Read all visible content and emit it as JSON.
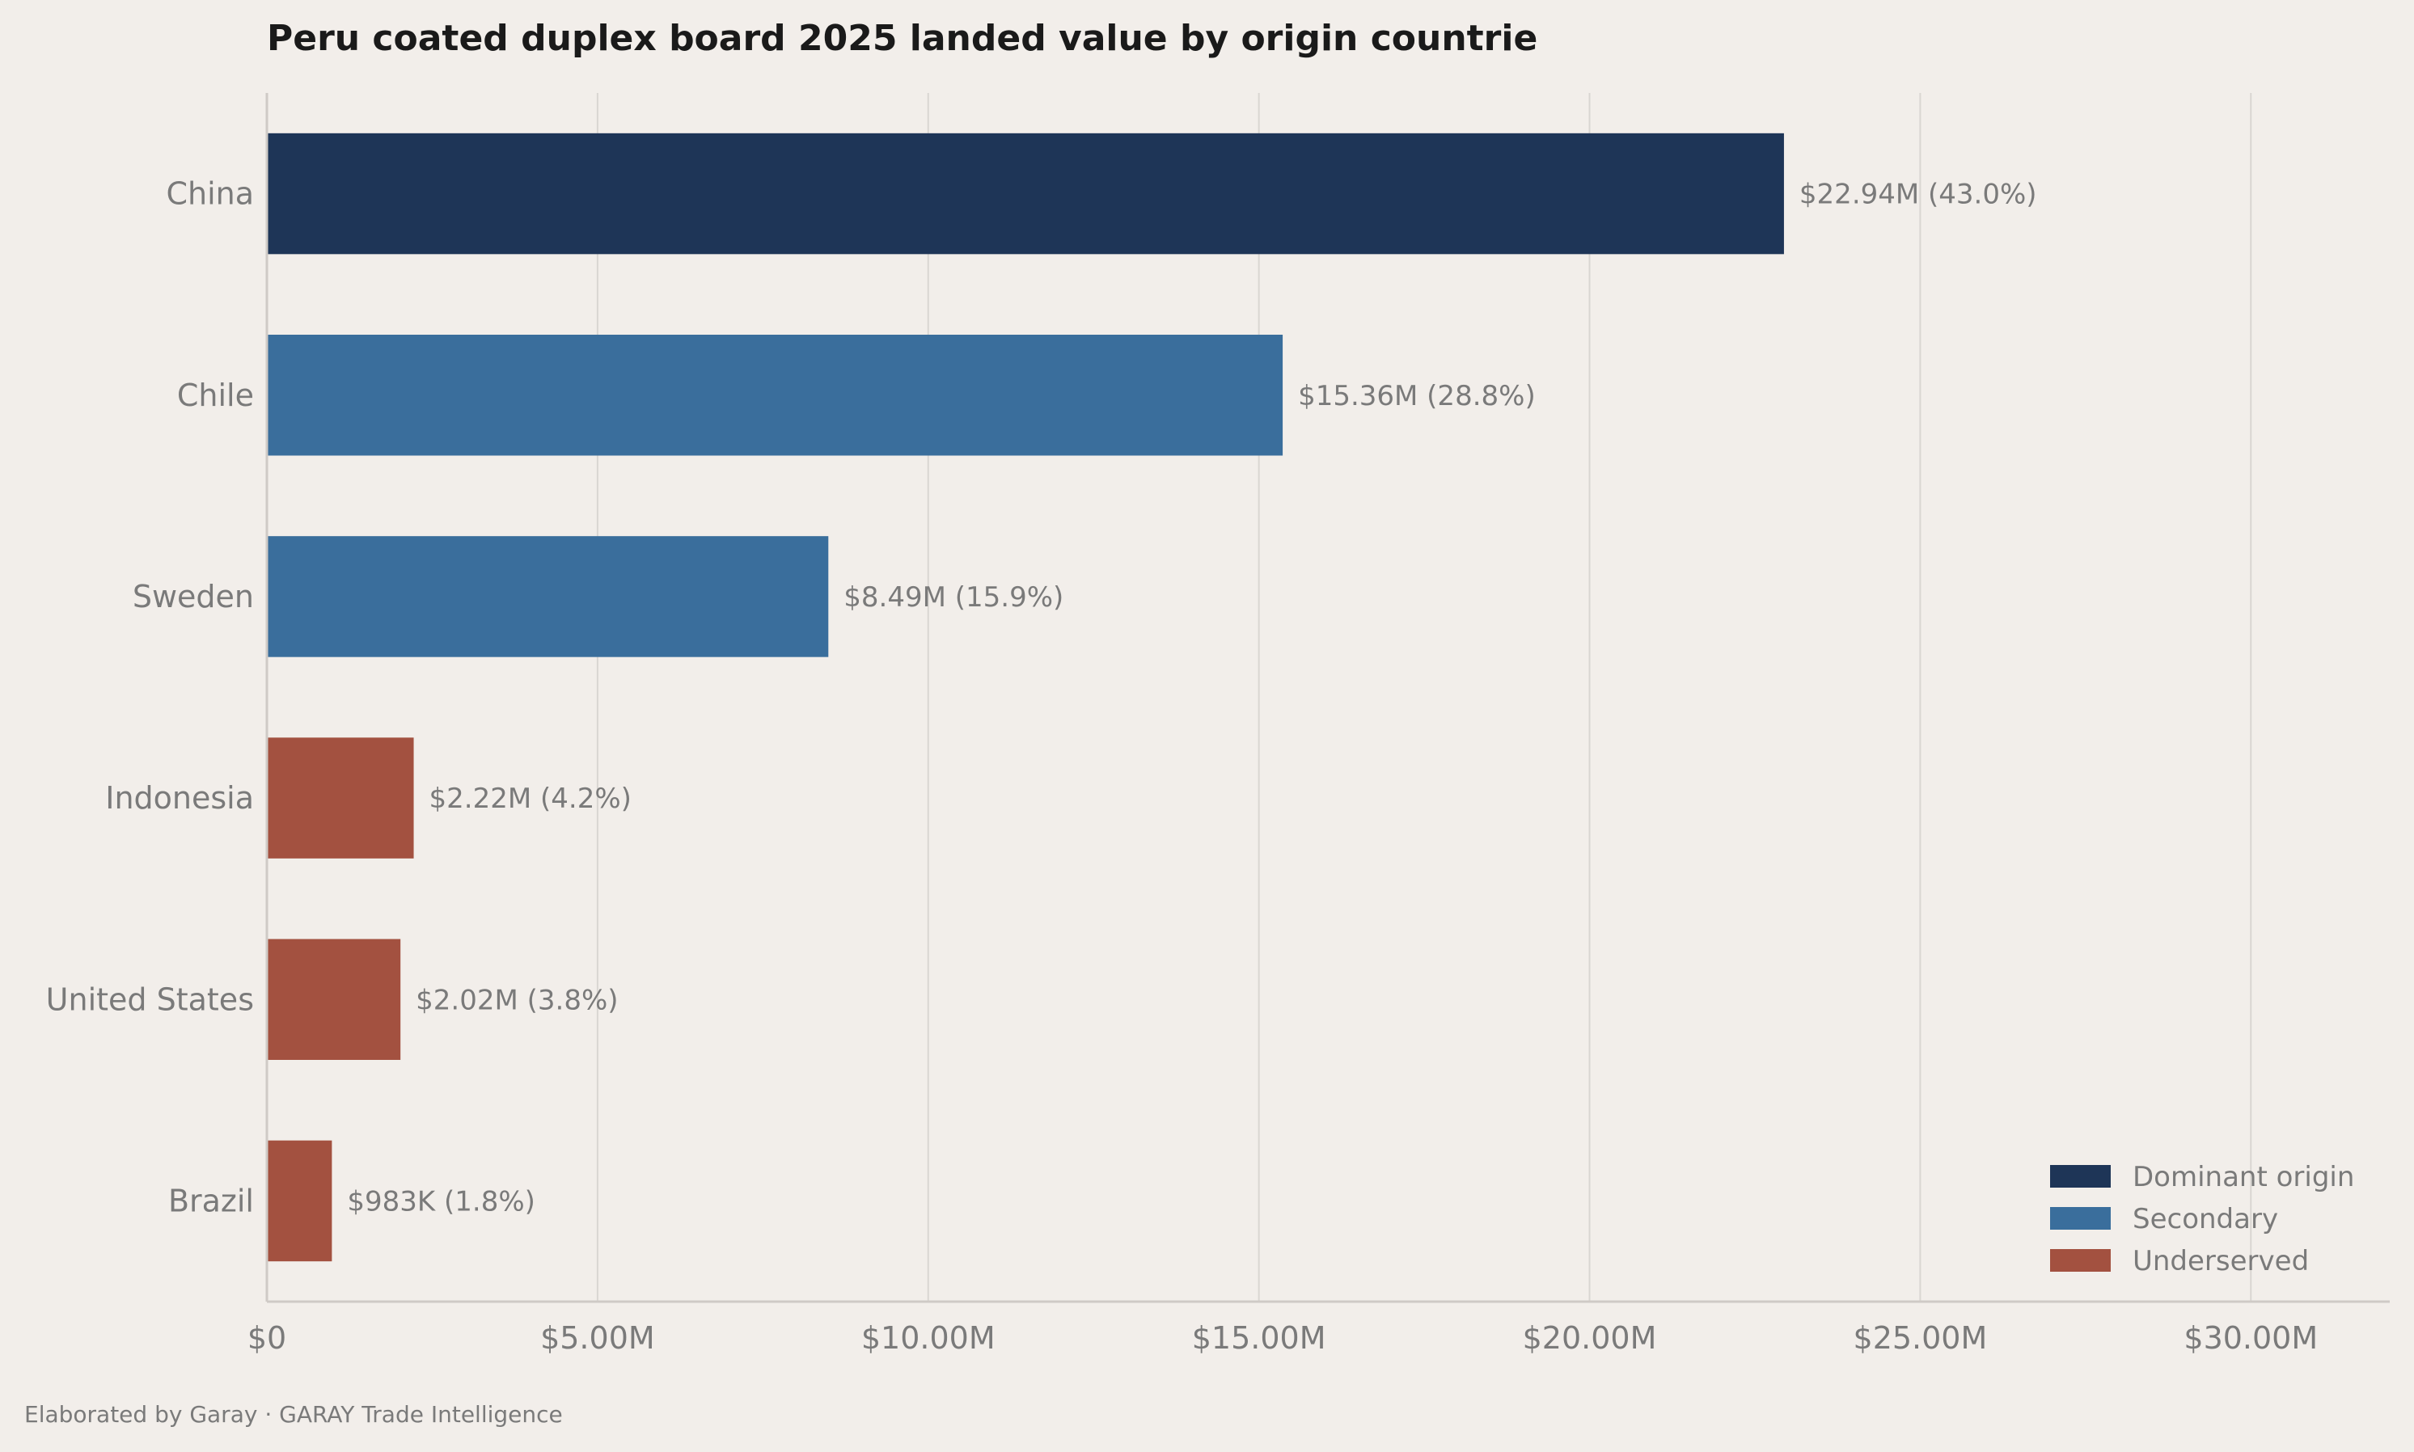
{
  "chart_data": {
    "type": "bar",
    "orientation": "horizontal",
    "title": "Peru coated duplex board 2025 landed value by origin countrie",
    "xlabel": "",
    "ylabel": "",
    "xlim": [
      0,
      32100000
    ],
    "x_ticks": [
      {
        "value": 0,
        "label": "$0"
      },
      {
        "value": 5000000,
        "label": "$5.00M"
      },
      {
        "value": 10000000,
        "label": "$10.00M"
      },
      {
        "value": 15000000,
        "label": "$15.00M"
      },
      {
        "value": 20000000,
        "label": "$20.00M"
      },
      {
        "value": 25000000,
        "label": "$25.00M"
      },
      {
        "value": 30000000,
        "label": "$30.00M"
      }
    ],
    "grid": "vertical",
    "legend_position": "bottom-right",
    "categories": [
      "China",
      "Chile",
      "Sweden",
      "Indonesia",
      "United States",
      "Brazil"
    ],
    "values": [
      22940000,
      15360000,
      8490000,
      2220000,
      2020000,
      983000
    ],
    "value_labels": [
      "$22.94M  (43.0%)",
      "$15.36M  (28.8%)",
      "$8.49M  (15.9%)",
      "$2.22M  (4.2%)",
      "$2.02M  (3.8%)",
      "$983K  (1.8%)"
    ],
    "bar_groups": [
      "dominant",
      "secondary",
      "secondary",
      "underserved",
      "underserved",
      "underserved"
    ],
    "legend": [
      {
        "key": "dominant",
        "label": "Dominant origin",
        "color": "#1e3557"
      },
      {
        "key": "secondary",
        "label": "Secondary",
        "color": "#3a6e9c"
      },
      {
        "key": "underserved",
        "label": "Underserved",
        "color": "#a35140"
      }
    ]
  },
  "footer": {
    "text": "Elaborated by Garay  ·  GARAY Trade Intelligence"
  }
}
